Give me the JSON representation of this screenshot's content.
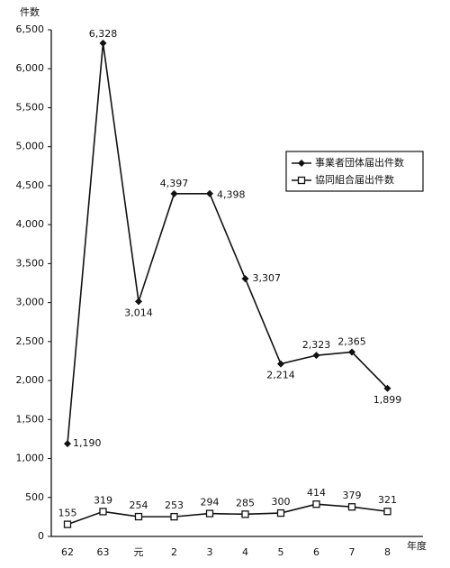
{
  "chart_data": {
    "type": "line",
    "y_label": "件数",
    "x_label": "年度",
    "categories": [
      "62",
      "63",
      "元",
      "2",
      "3",
      "4",
      "5",
      "6",
      "7",
      "8"
    ],
    "series": [
      {
        "name": "事業者団体届出件数",
        "color": "#111111",
        "marker": "diamond",
        "values": [
          1190,
          6328,
          3014,
          4397,
          4398,
          3307,
          2214,
          2323,
          2365,
          1899
        ],
        "value_labels": [
          "1,190",
          "6,328",
          "3,014",
          "4,397",
          "4,398",
          "3,307",
          "2,214",
          "2,323",
          "2,365",
          "1,899"
        ]
      },
      {
        "name": "協同組合届出件数",
        "color": "#111111",
        "marker": "square",
        "values": [
          155,
          319,
          254,
          253,
          294,
          285,
          300,
          414,
          379,
          321
        ]
      }
    ],
    "ylim": [
      0,
      6500
    ],
    "yticks": [
      0,
      500,
      {
        "value": 1000,
        "label": "1,000"
      },
      {
        "value": 1500,
        "label": "1,500"
      },
      {
        "value": 2000,
        "label": "2,000"
      },
      {
        "value": 2500,
        "label": "2,500"
      },
      {
        "value": 3000,
        "label": "3,000"
      },
      {
        "value": 3500,
        "label": "3,500"
      },
      {
        "value": 4000,
        "label": "4,000"
      },
      {
        "value": 4500,
        "label": "4,500"
      },
      {
        "value": 5000,
        "label": "5,000"
      },
      {
        "value": 5500,
        "label": "5,500"
      },
      {
        "value": 6000,
        "label": "6,000"
      },
      {
        "value": 6500,
        "label": "6,500"
      }
    ],
    "grid": false
  }
}
